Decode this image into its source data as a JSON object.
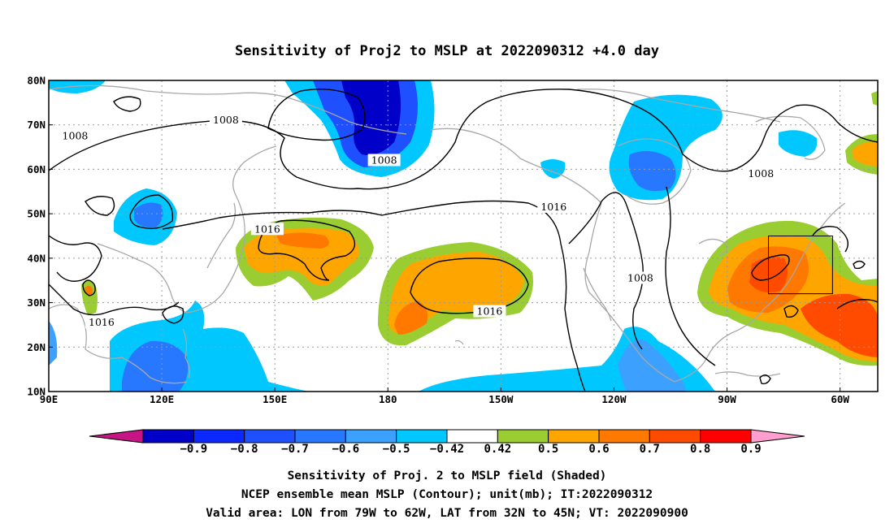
{
  "title": "Sensitivity of Proj2 to MSLP at 2022090312 +4.0 day",
  "axes": {
    "lon_labels": [
      "90E",
      "120E",
      "150E",
      "180",
      "150W",
      "120W",
      "90W",
      "60W"
    ],
    "lat_labels": [
      "80N",
      "70N",
      "60N",
      "50N",
      "40N",
      "30N",
      "20N",
      "10N"
    ]
  },
  "map_data": {
    "lon_range": [
      90,
      310
    ],
    "lat_range": [
      10,
      80
    ],
    "grid": true,
    "colorbar": {
      "labels": [
        "-0.9",
        "-0.8",
        "-0.7",
        "-0.6",
        "-0.5",
        "-0.42",
        "0.42",
        "0.5",
        "0.6",
        "0.7",
        "0.8",
        "0.9"
      ],
      "colors": [
        "#c71585",
        "#0000c8",
        "#0a28ff",
        "#1e50ff",
        "#2878ff",
        "#3ca0ff",
        "#00c8ff",
        "#ffffff",
        "#9acd32",
        "#ffa500",
        "#ff7800",
        "#ff4b00",
        "#ff0000",
        "#ff9ecf"
      ]
    },
    "contour_labels": [
      {
        "text": "1008",
        "lon": 137,
        "lat": 71
      },
      {
        "text": "1008",
        "lon": 97,
        "lat": 67.5
      },
      {
        "text": "1008",
        "lon": 179,
        "lat": 62
      },
      {
        "text": "1016",
        "lon": 148,
        "lat": 46.5
      },
      {
        "text": "1016",
        "lon": 224,
        "lat": 51.5
      },
      {
        "text": "1008",
        "lon": 279,
        "lat": 59
      },
      {
        "text": "1008",
        "lon": 247,
        "lat": 35.5
      },
      {
        "text": "1016",
        "lon": 207,
        "lat": 28
      },
      {
        "text": "1016",
        "lon": 104,
        "lat": 25.5
      }
    ],
    "valid_area": {
      "lon": [
        281,
        298
      ],
      "lat": [
        32,
        45
      ]
    }
  },
  "footer": {
    "line1": "Sensitivity of Proj. 2 to MSLP field (Shaded)",
    "line2": "NCEP ensemble mean MSLP (Contour); unit(mb); IT:2022090312",
    "line3": "Valid area: LON from 79W to 62W, LAT from 32N to 45N; VT: 2022090900"
  }
}
